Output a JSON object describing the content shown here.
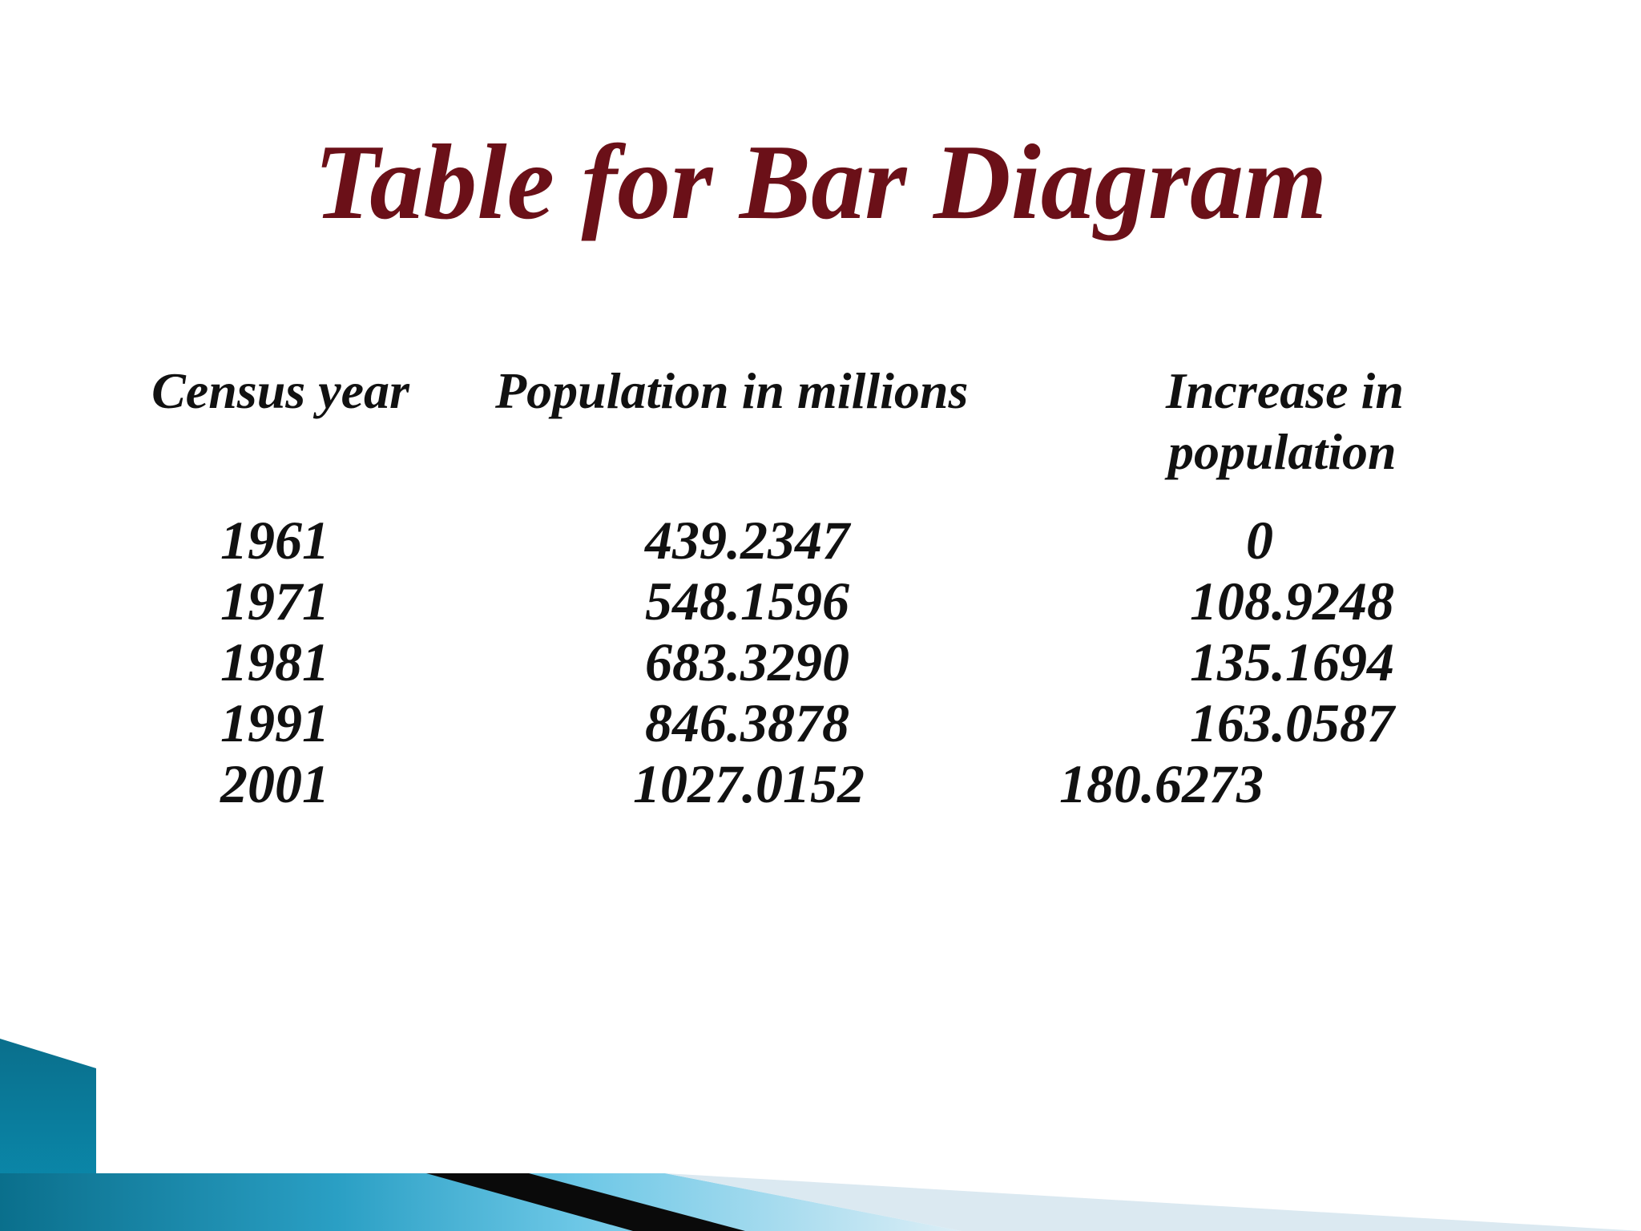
{
  "title": "Table for Bar Diagram",
  "colors": {
    "title": "#6b1018",
    "text": "#111111",
    "accent_dark": "#0a6f8c",
    "accent_light": "#5ec3e3"
  },
  "table": {
    "headers": {
      "year": "Census year",
      "population": "Population in millions",
      "increase_line1": "Increase in",
      "increase_line2": "population"
    },
    "rows": [
      {
        "year": "1961",
        "population": "439.2347",
        "increase": "0"
      },
      {
        "year": "1971",
        "population": "548.1596",
        "increase": "108.9248"
      },
      {
        "year": "1981",
        "population": "683.3290",
        "increase": "135.1694"
      },
      {
        "year": "1991",
        "population": "846.3878",
        "increase": "163.0587"
      },
      {
        "year": "2001",
        "population": "1027.0152",
        "increase": "180.6273"
      }
    ]
  }
}
